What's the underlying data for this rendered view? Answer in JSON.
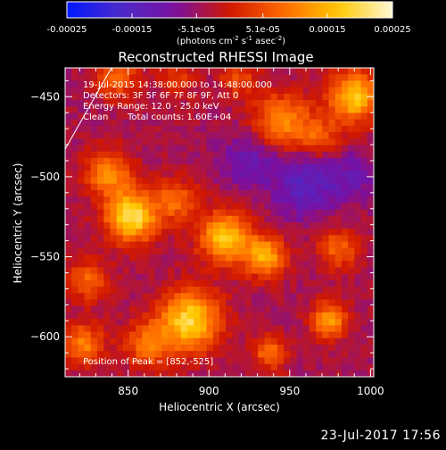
{
  "footer": {
    "date": "23-Jul-2017 17:56"
  },
  "chart_data": {
    "type": "heatmap",
    "title": "Reconstructed RHESSI Image",
    "xlabel": "Heliocentric X (arcsec)",
    "ylabel": "Heliocentric Y (arcsec)",
    "xlim": [
      811,
      1002
    ],
    "ylim": [
      -625,
      -432
    ],
    "x_ticks": [
      850,
      900,
      950,
      1000
    ],
    "y_ticks": [
      -450,
      -500,
      -550,
      -600
    ],
    "colorbar": {
      "range": [
        -0.00025,
        0.00025
      ],
      "tick_labels": [
        "-0.00025",
        "-0.00015",
        "-5.1e-05",
        "5.1e-05",
        "0.00015",
        "0.00025"
      ],
      "tick_values": [
        -0.00025,
        -0.00015,
        -5.1e-05,
        5.1e-05,
        0.00015,
        0.00025
      ],
      "unit_text": "(photons cm",
      "unit_sup1": "-2",
      "unit_mid": " s",
      "unit_sup2": "-1",
      "unit_tail": " asec",
      "unit_sup3": "-2",
      "unit_close": ")"
    },
    "annotations": {
      "time_range": "19-Jul-2015 14:38:00.000 to 14:48:00.000",
      "detectors": "Detectors: 3F 5F 6F 7F 8F 9F, Att 0",
      "energy": "Energy Range: 12.0 - 25.0 keV",
      "method": "Clean",
      "counts": "Total counts: 1.60E+04",
      "peak": "Position of Peak = [852,-525]"
    },
    "grid": false,
    "colormap": [
      "#0018ff",
      "#4d2bc8",
      "#7a0fa0",
      "#d11800",
      "#ff6a00",
      "#ffc800",
      "#fff8d8"
    ],
    "sources": [
      {
        "x": 852,
        "y": -525,
        "amplitude": 0.00025,
        "sigma": 11
      },
      {
        "x": 838,
        "y": -498,
        "amplitude": 0.00015,
        "sigma": 10
      },
      {
        "x": 880,
        "y": -515,
        "amplitude": 0.00012,
        "sigma": 9
      },
      {
        "x": 888,
        "y": -590,
        "amplitude": 0.00023,
        "sigma": 13
      },
      {
        "x": 862,
        "y": -605,
        "amplitude": 0.00012,
        "sigma": 10
      },
      {
        "x": 910,
        "y": -538,
        "amplitude": 0.00021,
        "sigma": 11
      },
      {
        "x": 935,
        "y": -550,
        "amplitude": 0.00018,
        "sigma": 9
      },
      {
        "x": 945,
        "y": -465,
        "amplitude": 0.00015,
        "sigma": 12
      },
      {
        "x": 990,
        "y": -450,
        "amplitude": 0.00021,
        "sigma": 11
      },
      {
        "x": 968,
        "y": -475,
        "amplitude": 0.0001,
        "sigma": 9
      },
      {
        "x": 825,
        "y": -565,
        "amplitude": 0.00011,
        "sigma": 9
      },
      {
        "x": 980,
        "y": -545,
        "amplitude": 0.00011,
        "sigma": 9
      },
      {
        "x": 975,
        "y": -590,
        "amplitude": 0.00016,
        "sigma": 8
      },
      {
        "x": 918,
        "y": -438,
        "amplitude": 9e-05,
        "sigma": 8
      },
      {
        "x": 938,
        "y": -610,
        "amplitude": 0.00013,
        "sigma": 7
      },
      {
        "x": 822,
        "y": -605,
        "amplitude": 0.00014,
        "sigma": 9
      },
      {
        "x": 843,
        "y": -438,
        "amplitude": 0.00012,
        "sigma": 9
      },
      {
        "x": 880,
        "y": -440,
        "amplitude": 7e-05,
        "sigma": 8
      },
      {
        "x": 960,
        "y": -505,
        "amplitude": -0.0001,
        "sigma": 14
      },
      {
        "x": 925,
        "y": -490,
        "amplitude": -7e-05,
        "sigma": 12
      },
      {
        "x": 990,
        "y": -500,
        "amplitude": -6e-05,
        "sigma": 10
      }
    ],
    "background": -4e-05
  }
}
